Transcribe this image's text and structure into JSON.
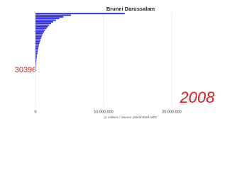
{
  "chart_data": {
    "type": "bar",
    "orientation": "horizontal",
    "title": "Brunei Darussalam",
    "xlabel": "in millions / Source: World Bank WDI",
    "highlight_label": "30396",
    "year_label": "2008",
    "categories": [
      null,
      null,
      null,
      null,
      null,
      null,
      null,
      null,
      null,
      null,
      null,
      null,
      null,
      null,
      null,
      null,
      null,
      null,
      null,
      null,
      null,
      null,
      null,
      null,
      null,
      null,
      null,
      null,
      null,
      null,
      null,
      null,
      null,
      null,
      null
    ],
    "values": [
      13100000,
      5200000,
      4100000,
      3500000,
      3000000,
      2600000,
      2300000,
      2000000,
      1800000,
      1600000,
      1400000,
      1250000,
      1100000,
      1000000,
      900000,
      800000,
      720000,
      650000,
      580000,
      520000,
      460000,
      410000,
      360000,
      320000,
      280000,
      240000,
      200000,
      170000,
      140000,
      110000,
      90000,
      70000,
      50000,
      40000,
      30396
    ],
    "color": "#2b2bd6",
    "xlim": [
      0,
      25000000
    ],
    "xticks": [
      0,
      {
        "value": 10000000,
        "label": "10,000,000"
      },
      {
        "value": 20000000,
        "label": "20,000,000"
      }
    ],
    "grid": true
  }
}
